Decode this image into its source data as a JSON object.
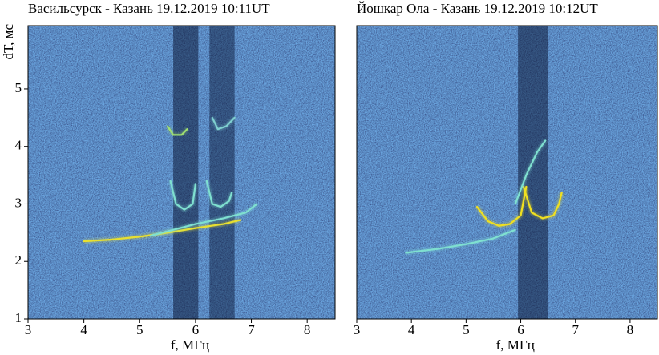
{
  "chart_data": [
    {
      "type": "line",
      "title": "Васильсурск - Казань 19.12.2019 10:11UT",
      "xlabel": "f, МГц",
      "ylabel": "dT, мс",
      "xlim": [
        3,
        8.5
      ],
      "ylim": [
        1,
        6.1
      ],
      "xticks": [
        3,
        4,
        5,
        6,
        7,
        8
      ],
      "yticks": [
        1,
        2,
        3,
        4,
        5
      ],
      "series": [
        {
          "color": "#e8e030",
          "x": [
            4.0,
            4.5,
            5.0,
            5.5,
            6.0,
            6.5,
            6.8
          ],
          "values": [
            2.35,
            2.38,
            2.43,
            2.5,
            2.58,
            2.65,
            2.72
          ]
        },
        {
          "color": "#7fe0d0",
          "x": [
            5.2,
            5.6,
            6.0,
            6.5,
            6.9,
            7.1
          ],
          "values": [
            2.45,
            2.55,
            2.65,
            2.75,
            2.85,
            3.0
          ]
        },
        {
          "color": "#7fe0d0",
          "x": [
            5.55,
            5.65,
            5.8,
            5.95,
            6.0
          ],
          "values": [
            3.4,
            3.0,
            2.9,
            3.0,
            3.35
          ]
        },
        {
          "color": "#7fe0d0",
          "x": [
            6.2,
            6.3,
            6.45,
            6.6,
            6.65
          ],
          "values": [
            3.4,
            3.0,
            2.95,
            3.05,
            3.2
          ]
        },
        {
          "color": "#a0e070",
          "x": [
            5.5,
            5.6,
            5.75,
            5.85
          ],
          "values": [
            4.35,
            4.2,
            4.2,
            4.3
          ]
        },
        {
          "color": "#7fd0d0",
          "x": [
            6.3,
            6.4,
            6.55,
            6.7
          ],
          "values": [
            4.5,
            4.3,
            4.35,
            4.5
          ]
        }
      ]
    },
    {
      "type": "line",
      "title": "Йошкар Ола - Казань 19.12.2019 10:12UT",
      "xlabel": "f, МГц",
      "xlim": [
        3,
        8.5
      ],
      "ylim": [
        1,
        6.1
      ],
      "xticks": [
        3,
        4,
        5,
        6,
        7,
        8
      ],
      "series": [
        {
          "color": "#7fe0d0",
          "x": [
            3.9,
            4.5,
            5.0,
            5.5,
            5.9
          ],
          "values": [
            2.15,
            2.22,
            2.3,
            2.4,
            2.55
          ]
        },
        {
          "color": "#f0e020",
          "x": [
            5.2,
            5.4,
            5.6,
            5.8,
            6.0,
            6.1
          ],
          "values": [
            2.95,
            2.7,
            2.62,
            2.65,
            2.8,
            3.3
          ]
        },
        {
          "color": "#f0e020",
          "x": [
            6.05,
            6.2,
            6.4,
            6.6,
            6.7,
            6.75
          ],
          "values": [
            3.3,
            2.85,
            2.75,
            2.8,
            3.0,
            3.2
          ]
        },
        {
          "color": "#7fe0d0",
          "x": [
            5.9,
            6.1,
            6.3,
            6.45
          ],
          "values": [
            3.0,
            3.5,
            3.9,
            4.1
          ]
        }
      ]
    }
  ]
}
